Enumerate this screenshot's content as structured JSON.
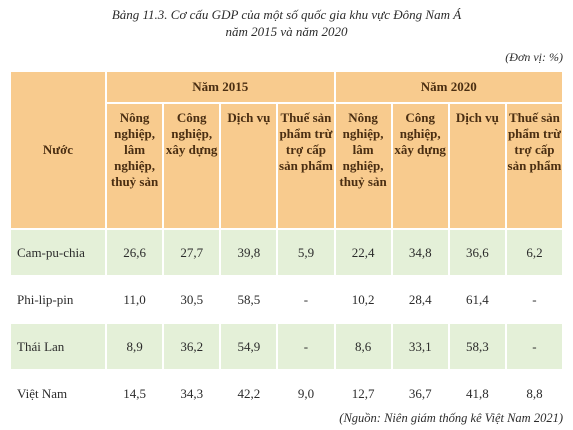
{
  "header": {
    "title": "Bảng 11.3. Cơ cấu GDP của một số quốc gia khu vực Đông Nam Á",
    "subtitle": "năm 2015 và năm 2020",
    "unit": "(Đơn vị: %)"
  },
  "table": {
    "country_header": "Nước",
    "year_headers": [
      "Năm 2015",
      "Năm 2020"
    ],
    "column_headers": [
      "Nông nghiệp, lâm nghiệp, thuỷ sản",
      "Công nghiệp, xây dựng",
      "Dịch vụ",
      "Thuế sản phẩm trừ trợ cấp sản phẩm",
      "Nông nghiệp, lâm nghiệp, thuỷ sản",
      "Công nghiệp, xây dựng",
      "Dịch vụ",
      "Thuế sản phẩm trừ trợ cấp sản phẩm"
    ],
    "rows": [
      [
        "Cam-pu-chia",
        "26,6",
        "27,7",
        "39,8",
        "5,9",
        "22,4",
        "34,8",
        "36,6",
        "6,2"
      ],
      [
        "Phi-lip-pin",
        "11,0",
        "30,5",
        "58,5",
        "-",
        "10,2",
        "28,4",
        "61,4",
        "-"
      ],
      [
        "Thái Lan",
        "8,9",
        "36,2",
        "54,9",
        "-",
        "8,6",
        "33,1",
        "58,3",
        "-"
      ],
      [
        "Việt Nam",
        "14,5",
        "34,3",
        "42,2",
        "9,0",
        "12,7",
        "36,7",
        "41,8",
        "8,8"
      ]
    ]
  },
  "footer": {
    "source": "(Nguồn: Niên giám thống kê Việt Nam 2021)"
  }
}
